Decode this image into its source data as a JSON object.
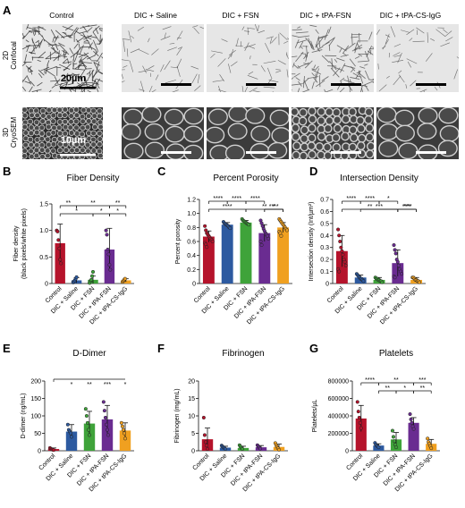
{
  "figure": {
    "panel_letters": {
      "A": "A",
      "B": "B",
      "C": "C",
      "D": "D",
      "E": "E",
      "F": "F",
      "G": "G"
    },
    "colors": {
      "control": "#b5132b",
      "saline": "#2d5aa0",
      "fsn": "#3fa33a",
      "tpa_fsn": "#6a2c91",
      "tpa_cs": "#f0a020"
    },
    "micrographs": {
      "columns": [
        "Control",
        "DIC + Saline",
        "DIC + FSN",
        "DIC + tPA-FSN",
        "DIC + tPA-CS-IgG"
      ],
      "rows": [
        {
          "label_line1": "2D",
          "label_line2": "Confocal",
          "scale_text": "20µm"
        },
        {
          "label_line1": "3D",
          "label_line2": "CryoSEM",
          "scale_text": "10µm"
        }
      ]
    }
  },
  "chart_data": [
    {
      "id": "B",
      "type": "bar",
      "title": "Fiber Density",
      "ylabel_line1": "Fiber density",
      "ylabel_line2": "(black pixels/white pixels)",
      "categories": [
        "Control",
        "DIC + Saline",
        "DIC + FSN",
        "DIC + tPA-FSN",
        "DIC + tPA-CS-IgG"
      ],
      "values": [
        0.76,
        0.06,
        0.07,
        0.64,
        0.06
      ],
      "errors": [
        0.36,
        0.05,
        0.07,
        0.4,
        0.03
      ],
      "ylim": [
        0,
        1.5
      ],
      "yticks": [
        "0",
        "0.5",
        "1.0",
        "1.5"
      ],
      "points": [
        [
          1.0,
          0.98,
          0.82,
          0.66,
          0.45,
          0.38
        ],
        [
          0.02,
          0.04,
          0.06,
          0.09,
          0.12
        ],
        [
          0.01,
          0.05,
          0.07,
          0.14,
          0.22
        ],
        [
          1.0,
          0.92,
          0.64,
          0.55,
          0.35,
          0.26
        ],
        [
          0.03,
          0.05,
          0.07,
          0.09
        ]
      ],
      "significance": [
        {
          "from": 0,
          "to": 1,
          "label": "**"
        },
        {
          "from": 1,
          "to": 3,
          "label": "**"
        },
        {
          "from": 3,
          "to": 4,
          "label": "**"
        },
        {
          "from": 0,
          "to": 2,
          "label": "*"
        },
        {
          "from": 2,
          "to": 3,
          "label": "*"
        },
        {
          "from": 3,
          "to": 4,
          "label": "*"
        }
      ]
    },
    {
      "id": "C",
      "type": "bar",
      "title": "Percent Porosity",
      "ylabel_line1": "Percent porosity",
      "ylabel_line2": "",
      "categories": [
        "Control",
        "DIC + Saline",
        "DIC + FSN",
        "DIC + tPA-FSN",
        "DIC + tPA-CS-IgG"
      ],
      "values": [
        0.67,
        0.84,
        0.87,
        0.72,
        0.8
      ],
      "errors": [
        0.08,
        0.03,
        0.03,
        0.12,
        0.07
      ],
      "ylim": [
        0,
        1.2
      ],
      "yticks": [
        "0",
        "0.2",
        "0.4",
        "0.6",
        "0.8",
        "1.0",
        "1.2"
      ],
      "points": [
        [
          0.82,
          0.76,
          0.72,
          0.7,
          0.68,
          0.66,
          0.64,
          0.62,
          0.6,
          0.58,
          0.56,
          0.52
        ],
        [
          0.88,
          0.86,
          0.85,
          0.84,
          0.83,
          0.82,
          0.8,
          0.79
        ],
        [
          0.92,
          0.9,
          0.89,
          0.88,
          0.87,
          0.86,
          0.85,
          0.84
        ],
        [
          0.9,
          0.86,
          0.82,
          0.78,
          0.75,
          0.72,
          0.7,
          0.68,
          0.64,
          0.6,
          0.55
        ],
        [
          0.92,
          0.9,
          0.88,
          0.86,
          0.84,
          0.82,
          0.8,
          0.78,
          0.76,
          0.74,
          0.72,
          0.68
        ]
      ],
      "significance": [
        {
          "from": 0,
          "to": 1,
          "label": "****"
        },
        {
          "from": 1,
          "to": 2,
          "label": "****"
        },
        {
          "from": 2,
          "to": 3,
          "label": "****"
        },
        {
          "from": 3,
          "to": 4,
          "label": "****"
        },
        {
          "from": 0,
          "to": 2,
          "label": "****"
        },
        {
          "from": 2,
          "to": 4,
          "label": "**"
        },
        {
          "from": 3,
          "to": 4,
          "label": "*"
        }
      ]
    },
    {
      "id": "D",
      "type": "bar",
      "title": "Intersection Density",
      "ylabel_line1": "Intersection density (Int/µm²)",
      "ylabel_line2": "",
      "categories": [
        "Control",
        "DIC + Saline",
        "DIC + FSN",
        "DIC + tPA-FSN",
        "DIC + tPA-CS-IgG"
      ],
      "values": [
        0.27,
        0.05,
        0.03,
        0.17,
        0.03
      ],
      "errors": [
        0.13,
        0.02,
        0.02,
        0.11,
        0.02
      ],
      "ylim": [
        0,
        0.7
      ],
      "yticks": [
        "0",
        "0.1",
        "0.2",
        "0.3",
        "0.4",
        "0.5",
        "0.6",
        "0.7"
      ],
      "points": [
        [
          0.45,
          0.4,
          0.35,
          0.3,
          0.27,
          0.24,
          0.2,
          0.18,
          0.15,
          0.12,
          0.1
        ],
        [
          0.08,
          0.07,
          0.06,
          0.05,
          0.04,
          0.04,
          0.03,
          0.02
        ],
        [
          0.05,
          0.04,
          0.04,
          0.03,
          0.03,
          0.02,
          0.02,
          0.01
        ],
        [
          0.32,
          0.28,
          0.25,
          0.2,
          0.18,
          0.15,
          0.12,
          0.1,
          0.08,
          0.06,
          0.05
        ],
        [
          0.05,
          0.05,
          0.04,
          0.03,
          0.03,
          0.02,
          0.02,
          0.01
        ]
      ],
      "significance": [
        {
          "from": 0,
          "to": 1,
          "label": "****"
        },
        {
          "from": 1,
          "to": 2,
          "label": "****"
        },
        {
          "from": 2,
          "to": 3,
          "label": "*"
        },
        {
          "from": 3,
          "to": 4,
          "label": "****"
        },
        {
          "from": 0,
          "to": 3,
          "label": "**"
        },
        {
          "from": 1,
          "to": 3,
          "label": "***"
        },
        {
          "from": 3,
          "to": 4,
          "label": "***"
        }
      ]
    },
    {
      "id": "E",
      "type": "bar",
      "title": "D-Dimer",
      "ylabel_line1": "D-dimer (ng/mL)",
      "ylabel_line2": "",
      "categories": [
        "Control",
        "DIC + Saline",
        "DIC + FSN",
        "DIC + tPA-FSN",
        "DIC + tPA-CS-IgG"
      ],
      "values": [
        5,
        55,
        78,
        90,
        58
      ],
      "errors": [
        3,
        20,
        35,
        40,
        22
      ],
      "ylim": [
        0,
        200
      ],
      "yticks": [
        "0",
        "50",
        "100",
        "150",
        "200"
      ],
      "points": [
        [
          8,
          6,
          4,
          3,
          2
        ],
        [
          75,
          60,
          55,
          50,
          40
        ],
        [
          120,
          100,
          80,
          60,
          45
        ],
        [
          140,
          115,
          95,
          75,
          60,
          45
        ],
        [
          80,
          70,
          60,
          50,
          35
        ]
      ],
      "significance": [
        {
          "from": 0,
          "to": 4,
          "label": "",
          "bracket": true
        },
        {
          "from": 1,
          "to": 1,
          "label": "*"
        },
        {
          "from": 2,
          "to": 2,
          "label": "**"
        },
        {
          "from": 3,
          "to": 3,
          "label": "***"
        },
        {
          "from": 4,
          "to": 4,
          "label": "*"
        }
      ]
    },
    {
      "id": "F",
      "type": "bar",
      "title": "Fibrinogen",
      "ylabel_line1": "Fibrinogen (mg/mL)",
      "ylabel_line2": "",
      "categories": [
        "Control",
        "DIC + Saline",
        "DIC + FSN",
        "DIC + tPA-FSN",
        "DIC + tPA-CS-IgG"
      ],
      "values": [
        3.3,
        0.9,
        0.8,
        1.0,
        1.1
      ],
      "errors": [
        3.2,
        0.4,
        0.5,
        0.5,
        0.8
      ],
      "ylim": [
        0,
        20
      ],
      "yticks": [
        "0",
        "5",
        "10",
        "15",
        "20"
      ],
      "points": [
        [
          9.5,
          4.5,
          2.5,
          1.5,
          0.5
        ],
        [
          1.5,
          1.2,
          1.0,
          0.8,
          0.5
        ],
        [
          1.6,
          1.2,
          0.8,
          0.5
        ],
        [
          1.6,
          1.2,
          0.9,
          0.6
        ],
        [
          2.2,
          1.6,
          1.1,
          0.7,
          0.3
        ]
      ],
      "significance": []
    },
    {
      "id": "G",
      "type": "bar",
      "title": "Platelets",
      "ylabel_line1": "Platelets/µL",
      "ylabel_line2": "",
      "categories": [
        "Control",
        "DIC + Saline",
        "DIC + FSN",
        "DIC + tPA-FSN",
        "DIC + tPA-CS-IgG"
      ],
      "values": [
        370000,
        60000,
        130000,
        320000,
        80000
      ],
      "errors": [
        150000,
        20000,
        80000,
        60000,
        50000
      ],
      "ylim": [
        0,
        800000
      ],
      "yticks": [
        "0",
        "200000",
        "400000",
        "600000",
        "800000"
      ],
      "points": [
        [
          560000,
          450000,
          380000,
          320000,
          260000
        ],
        [
          90000,
          70000,
          60000,
          50000,
          40000
        ],
        [
          230000,
          160000,
          110000,
          70000,
          40000
        ],
        [
          420000,
          360000,
          320000,
          280000,
          250000
        ],
        [
          140000,
          100000,
          80000,
          55000,
          30000
        ]
      ],
      "significance": [
        {
          "from": 0,
          "to": 1,
          "label": "****"
        },
        {
          "from": 1,
          "to": 3,
          "label": "**"
        },
        {
          "from": 3,
          "to": 4,
          "label": "***"
        },
        {
          "from": 1,
          "to": 2,
          "label": "**"
        },
        {
          "from": 2,
          "to": 3,
          "label": "*"
        },
        {
          "from": 3,
          "to": 4,
          "label": "**"
        }
      ]
    }
  ]
}
